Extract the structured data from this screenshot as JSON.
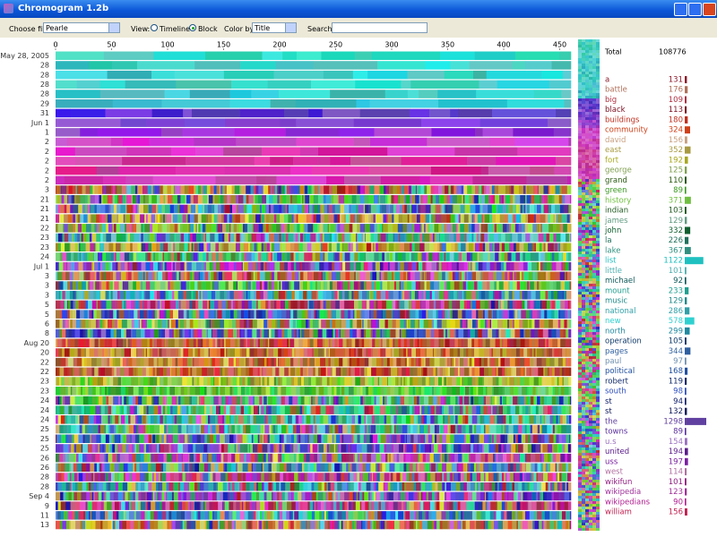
{
  "window": {
    "title": "Chromogram 1.2b"
  },
  "toolbar": {
    "choose_file_label": "Choose file:",
    "file": "Pearle",
    "view_label": "View:",
    "view_options": [
      "Timeline",
      "Block"
    ],
    "view_selected": 1,
    "color_by_label": "Color by:",
    "color_by": "Title",
    "search_label": "Search:"
  },
  "timeline": {
    "axis_ticks": [
      0,
      50,
      100,
      150,
      200,
      250,
      300,
      350,
      400,
      450
    ],
    "axis_range": [
      0,
      460
    ],
    "row_labels": [
      "May 28, 2005",
      "28",
      "28",
      "28",
      "28",
      "29",
      "31",
      "Jun 1",
      "1",
      "2",
      "2",
      "2",
      "2",
      "2",
      "3",
      "21",
      "21",
      "21",
      "22",
      "23",
      "23",
      "24",
      "Jul 1",
      "3",
      "3",
      "3",
      "5",
      "5",
      "6",
      "8",
      "Aug 20",
      "20",
      "22",
      "22",
      "23",
      "23",
      "24",
      "24",
      "24",
      "25",
      "25",
      "25",
      "26",
      "26",
      "28",
      "28",
      "Sep 4",
      "9",
      "11",
      "13"
    ]
  },
  "summary": {
    "total_label": "Total",
    "total": 108776,
    "words": [
      {
        "word": "a",
        "count": 131,
        "color": "#8b1a2a"
      },
      {
        "word": "battle",
        "count": 176,
        "color": "#b0705a"
      },
      {
        "word": "big",
        "count": 109,
        "color": "#b03040"
      },
      {
        "word": "black",
        "count": 113,
        "color": "#7a1020"
      },
      {
        "word": "buildings",
        "count": 180,
        "color": "#c03020"
      },
      {
        "word": "community",
        "count": 324,
        "color": "#d04018"
      },
      {
        "word": "david",
        "count": 156,
        "color": "#c8a080"
      },
      {
        "word": "east",
        "count": 352,
        "color": "#a89a40"
      },
      {
        "word": "fort",
        "count": 192,
        "color": "#a8a820"
      },
      {
        "word": "george",
        "count": 125,
        "color": "#80a050"
      },
      {
        "word": "grand",
        "count": 110,
        "color": "#2a5a10"
      },
      {
        "word": "green",
        "count": 89,
        "color": "#3a9a20"
      },
      {
        "word": "history",
        "count": 371,
        "color": "#70c040"
      },
      {
        "word": "indian",
        "count": 103,
        "color": "#205a20"
      },
      {
        "word": "james",
        "count": 129,
        "color": "#609a80"
      },
      {
        "word": "john",
        "count": 332,
        "color": "#106030"
      },
      {
        "word": "la",
        "count": 226,
        "color": "#20705a"
      },
      {
        "word": "lake",
        "count": 367,
        "color": "#309080"
      },
      {
        "word": "list",
        "count": 1122,
        "color": "#20c0c0"
      },
      {
        "word": "little",
        "count": 101,
        "color": "#50b0b0"
      },
      {
        "word": "michael",
        "count": 92,
        "color": "#105a5a"
      },
      {
        "word": "mount",
        "count": 233,
        "color": "#20a090"
      },
      {
        "word": "music",
        "count": 129,
        "color": "#208a8a"
      },
      {
        "word": "national",
        "count": 286,
        "color": "#30a0a8"
      },
      {
        "word": "new",
        "count": 578,
        "color": "#30d0d0"
      },
      {
        "word": "north",
        "count": 299,
        "color": "#208aa0"
      },
      {
        "word": "operation",
        "count": 105,
        "color": "#103a6a"
      },
      {
        "word": "pages",
        "count": 344,
        "color": "#3060a0"
      },
      {
        "word": "paul",
        "count": 97,
        "color": "#7090b0"
      },
      {
        "word": "political",
        "count": 168,
        "color": "#2050a0"
      },
      {
        "word": "robert",
        "count": 119,
        "color": "#102a6a"
      },
      {
        "word": "south",
        "count": 98,
        "color": "#3050c0"
      },
      {
        "word": "st",
        "count": 94,
        "color": "#10206a"
      },
      {
        "word": "st",
        "count": 132,
        "color": "#101a5a"
      },
      {
        "word": "the",
        "count": 1298,
        "color": "#6040a0"
      },
      {
        "word": "towns",
        "count": 89,
        "color": "#5a30a0"
      },
      {
        "word": "u.s",
        "count": 154,
        "color": "#9a70c0"
      },
      {
        "word": "united",
        "count": 194,
        "color": "#5a1a8a"
      },
      {
        "word": "uss",
        "count": 197,
        "color": "#7a20a0"
      },
      {
        "word": "west",
        "count": 114,
        "color": "#b070a0"
      },
      {
        "word": "wikifun",
        "count": 101,
        "color": "#902080"
      },
      {
        "word": "wikipedia",
        "count": 123,
        "color": "#a0309a"
      },
      {
        "word": "wikipedians",
        "count": 90,
        "color": "#b02090"
      },
      {
        "word": "william",
        "count": 156,
        "color": "#c02050"
      }
    ]
  }
}
